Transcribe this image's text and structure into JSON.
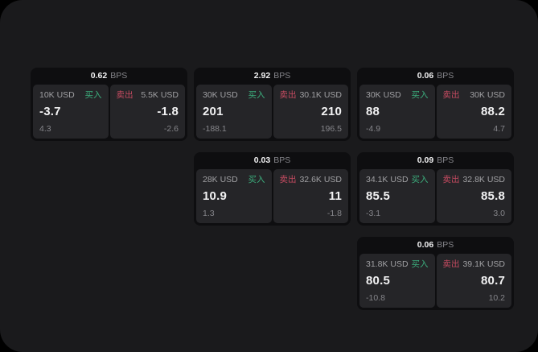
{
  "labels": {
    "bps": "BPS",
    "buy": "买入",
    "sell": "卖出"
  },
  "colors": {
    "background": "#000000",
    "surface": "#1a1a1c",
    "card": "#0e0e10",
    "panel": "#252528",
    "buy_green": "#3cae7d",
    "sell_red": "#c64b61",
    "value_white": "#f2f2f3",
    "label_gray": "#a0a0a3",
    "dim_gray": "#85858a"
  },
  "cards": [
    {
      "bps": "0.62",
      "buy": {
        "notional": "10K USD",
        "price": "-3.7",
        "delta": "4.3"
      },
      "sell": {
        "notional": "5.5K USD",
        "price": "-1.8",
        "delta": "-2.6"
      }
    },
    {
      "bps": "2.92",
      "buy": {
        "notional": "30K USD",
        "price": "201",
        "delta": "-188.1"
      },
      "sell": {
        "notional": "30.1K USD",
        "price": "210",
        "delta": "196.5"
      }
    },
    {
      "bps": "0.06",
      "buy": {
        "notional": "30K USD",
        "price": "88",
        "delta": "-4.9"
      },
      "sell": {
        "notional": "30K USD",
        "price": "88.2",
        "delta": "4.7"
      }
    },
    {
      "bps": "0.03",
      "buy": {
        "notional": "28K USD",
        "price": "10.9",
        "delta": "1.3"
      },
      "sell": {
        "notional": "32.6K USD",
        "price": "11",
        "delta": "-1.8"
      }
    },
    {
      "bps": "0.09",
      "buy": {
        "notional": "34.1K USD",
        "price": "85.5",
        "delta": "-3.1"
      },
      "sell": {
        "notional": "32.8K USD",
        "price": "85.8",
        "delta": "3.0"
      }
    },
    {
      "bps": "0.06",
      "buy": {
        "notional": "31.8K USD",
        "price": "80.5",
        "delta": "-10.8"
      },
      "sell": {
        "notional": "39.1K USD",
        "price": "80.7",
        "delta": "10.2"
      }
    }
  ]
}
